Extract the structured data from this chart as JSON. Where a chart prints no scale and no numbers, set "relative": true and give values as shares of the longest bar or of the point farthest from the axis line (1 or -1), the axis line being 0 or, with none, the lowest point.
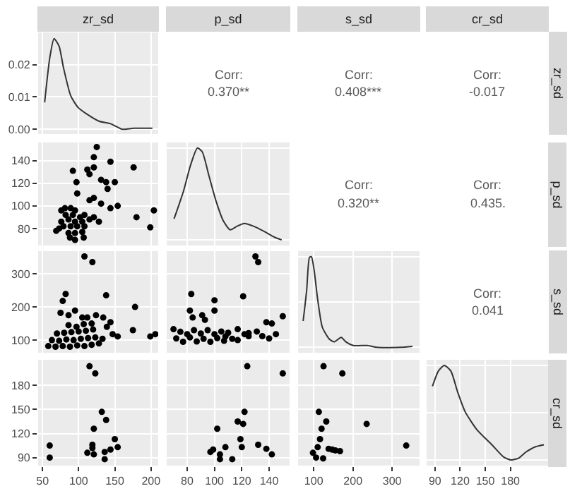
{
  "chart_data": [
    {
      "type": "line",
      "title": "zr_sd",
      "x": [
        53,
        60,
        66,
        73,
        79,
        89,
        99,
        112,
        128,
        144,
        160,
        176,
        202
      ],
      "values": [
        0.0083,
        0.022,
        0.0281,
        0.0257,
        0.0191,
        0.0104,
        0.0068,
        0.0046,
        0.0025,
        0.0017,
        0.0,
        0.0003,
        0.0003
      ],
      "color": "#333333",
      "xlim": [
        44,
        210
      ],
      "xticks": [
        50,
        100,
        150,
        200
      ],
      "ylim": [
        -0.0015,
        0.03
      ],
      "yticks": [
        {
          "value": 0,
          "label": "0.00"
        },
        {
          "value": 0.01,
          "label": "0.01"
        },
        {
          "value": 0.02,
          "label": "0.02"
        }
      ],
      "tick_labels": "y",
      "grid": true
    },
    {
      "type": "other",
      "title": "p_sd",
      "annotations": [
        "Corr:",
        "0.370**"
      ]
    },
    {
      "type": "other",
      "title": "s_sd",
      "annotations": [
        "Corr:",
        "0.408***"
      ]
    },
    {
      "type": "other",
      "title": "cr_sd",
      "y2label": "zr_sd",
      "annotations": [
        "Corr:",
        "-0.017"
      ]
    },
    {
      "type": "scatter",
      "x": [
        125,
        121,
        121,
        144,
        92,
        112,
        115,
        97,
        131,
        138,
        150,
        140,
        176,
        98,
        115,
        121,
        131,
        144,
        154,
        81,
        89,
        76,
        95,
        82,
        92,
        102,
        108,
        86,
        95,
        105,
        115,
        121,
        76,
        79,
        89,
        98,
        108,
        69,
        73,
        86,
        95,
        105,
        88,
        95,
        107,
        128,
        180,
        199,
        204
      ],
      "values": [
        152,
        143,
        134,
        139,
        131,
        132,
        128,
        121,
        123,
        121,
        121,
        115,
        134,
        111,
        105,
        107,
        102,
        98,
        100,
        98,
        98,
        96,
        96,
        92,
        92,
        90,
        92,
        88,
        86,
        86,
        88,
        90,
        86,
        82,
        82,
        82,
        82,
        78,
        80,
        76,
        76,
        77,
        72,
        70,
        72,
        86,
        90,
        81,
        96
      ],
      "color": "#000000",
      "marker": "circle",
      "xlim": [
        44,
        210
      ],
      "xticks": [
        50,
        100,
        150,
        200
      ],
      "ylim": [
        65,
        156
      ],
      "yticks": [
        80,
        100,
        120,
        140
      ],
      "tick_labels": "y",
      "grid": true
    },
    {
      "type": "line",
      "relative": true,
      "x": [
        70.4,
        77.3,
        82.4,
        87.5,
        91,
        96.1,
        101.2,
        106.4,
        111.5,
        116.6,
        121.8,
        128.6,
        135.5,
        144,
        149.2
      ],
      "values": [
        0.23,
        0.53,
        0.81,
        1,
        0.96,
        0.69,
        0.42,
        0.21,
        0.11,
        0.15,
        0.18,
        0.15,
        0.1,
        0.03,
        0
      ],
      "color": "#333333",
      "xlim": [
        65,
        155
      ],
      "xticks": [
        80,
        100,
        120,
        140
      ],
      "tick_labels": false,
      "grid": true
    },
    {
      "type": "other",
      "annotations": [
        "Corr:",
        "0.320**"
      ]
    },
    {
      "type": "other",
      "y2label": "p_sd",
      "annotations": [
        "Corr:",
        "0.435."
      ]
    },
    {
      "type": "scatter",
      "x": [
        108,
        119,
        82,
        78,
        138,
        75,
        86,
        95,
        105,
        112,
        124,
        134,
        144,
        178,
        175,
        199,
        206,
        154,
        147,
        139,
        58,
        68,
        78,
        88,
        98,
        108,
        118,
        128,
        63,
        73,
        83,
        93,
        103,
        113,
        123,
        133,
        70,
        80,
        90,
        100,
        110,
        120,
        86,
        97,
        107,
        118
      ],
      "values": [
        352,
        335,
        239,
        218,
        235,
        182,
        175,
        189,
        168,
        168,
        175,
        168,
        154,
        200,
        130,
        111,
        118,
        111,
        118,
        140,
        82,
        80,
        82,
        80,
        84,
        82,
        86,
        90,
        100,
        98,
        102,
        100,
        104,
        106,
        108,
        104,
        120,
        122,
        124,
        126,
        128,
        132,
        145,
        140,
        148,
        150
      ],
      "color": "#000000",
      "marker": "circle",
      "xlim": [
        44,
        210
      ],
      "xticks": [
        50,
        100,
        150,
        200
      ],
      "ylim": [
        62,
        368
      ],
      "yticks": [
        100,
        200,
        300
      ],
      "tick_labels": "y",
      "grid": true
    },
    {
      "type": "scatter",
      "x": [
        130,
        132,
        83,
        121,
        82,
        84,
        91,
        93,
        100,
        100,
        150,
        138,
        142,
        131,
        117,
        122,
        125,
        105,
        108,
        113,
        70,
        72,
        77,
        82,
        87,
        92,
        97,
        102,
        107,
        117,
        75,
        80,
        85,
        90,
        95,
        100,
        110,
        125,
        135,
        140,
        145
      ],
      "values": [
        352,
        335,
        239,
        232,
        189,
        168,
        175,
        161,
        189,
        220,
        172,
        154,
        150,
        126,
        133,
        118,
        121,
        126,
        111,
        104,
        133,
        105,
        95,
        108,
        96,
        104,
        95,
        106,
        98,
        100,
        125,
        118,
        130,
        120,
        130,
        118,
        122,
        112,
        112,
        105,
        118
      ],
      "color": "#000000",
      "marker": "circle",
      "xlim": [
        65,
        155
      ],
      "xticks": [
        80,
        100,
        120,
        140
      ],
      "ylim": [
        62,
        368
      ],
      "yticks": [
        100,
        200,
        300
      ],
      "tick_labels": false,
      "grid": true
    },
    {
      "type": "line",
      "relative": true,
      "x": [
        73,
        82,
        89,
        94,
        101,
        110,
        122,
        140,
        152,
        170,
        182,
        201,
        237,
        261,
        322,
        352
      ],
      "values": [
        0.29,
        0.63,
        0.99,
        1,
        0.85,
        0.53,
        0.22,
        0.09,
        0.06,
        0.11,
        0.06,
        0.02,
        0.02,
        0,
        0,
        0.01
      ],
      "color": "#333333",
      "xlim": [
        60,
        370
      ],
      "xticks": [
        100,
        200,
        300
      ],
      "tick_labels": false,
      "grid": true
    },
    {
      "type": "other",
      "y2label": "s_sd",
      "annotations": [
        "Corr:",
        "0.041"
      ]
    },
    {
      "type": "scatter",
      "x": [
        115,
        123,
        132,
        138,
        121,
        150,
        154,
        144,
        119,
        119,
        112,
        121,
        136,
        136,
        60,
        60
      ],
      "values": [
        204,
        195,
        147,
        137,
        126,
        113,
        103,
        100,
        106,
        102,
        96,
        94,
        97,
        88,
        105,
        90
      ],
      "color": "#000000",
      "marker": "circle",
      "xlim": [
        44,
        210
      ],
      "xticks": [
        50,
        100,
        150,
        200
      ],
      "ylim": [
        80,
        212
      ],
      "yticks": [
        90,
        120,
        150,
        180
      ],
      "grid": true
    },
    {
      "type": "scatter",
      "x": [
        124,
        150,
        122,
        117,
        121,
        102,
        119,
        120,
        132,
        138,
        142,
        99,
        97,
        104,
        104,
        113,
        108
      ],
      "values": [
        204,
        195,
        147,
        135,
        132,
        126,
        113,
        103,
        106,
        101,
        94,
        100,
        97,
        94,
        88,
        88,
        103
      ],
      "color": "#000000",
      "marker": "circle",
      "xlim": [
        65,
        155
      ],
      "xticks": [
        80,
        100,
        120,
        140
      ],
      "ylim": [
        80,
        212
      ],
      "yticks": [
        90,
        120,
        150,
        180
      ],
      "tick_labels": "x",
      "grid": true
    },
    {
      "type": "scatter",
      "x": [
        125,
        173,
        113,
        132,
        120,
        235,
        116,
        110,
        138,
        147,
        155,
        167,
        98,
        106,
        124,
        336
      ],
      "values": [
        204,
        195,
        147,
        135,
        126,
        132,
        113,
        103,
        101,
        100,
        99,
        98,
        96,
        90,
        89,
        105
      ],
      "color": "#000000",
      "marker": "circle",
      "xlim": [
        60,
        370
      ],
      "xticks": [
        100,
        200,
        300
      ],
      "ylim": [
        80,
        212
      ],
      "yticks": [
        90,
        120,
        150,
        180
      ],
      "tick_labels": "x",
      "grid": true
    },
    {
      "type": "line",
      "relative": true,
      "y2label": "cr_sd",
      "x": [
        87,
        94,
        101,
        109,
        117,
        126,
        140,
        158,
        172,
        181,
        190,
        198,
        210,
        220
      ],
      "values": [
        0.78,
        0.94,
        1,
        0.94,
        0.72,
        0.51,
        0.32,
        0.16,
        0.03,
        0,
        0.02,
        0.08,
        0.14,
        0.16
      ],
      "color": "#333333",
      "xlim": [
        80,
        225
      ],
      "xticks": [
        90,
        120,
        150,
        180
      ],
      "tick_labels": "x",
      "grid": true
    }
  ]
}
